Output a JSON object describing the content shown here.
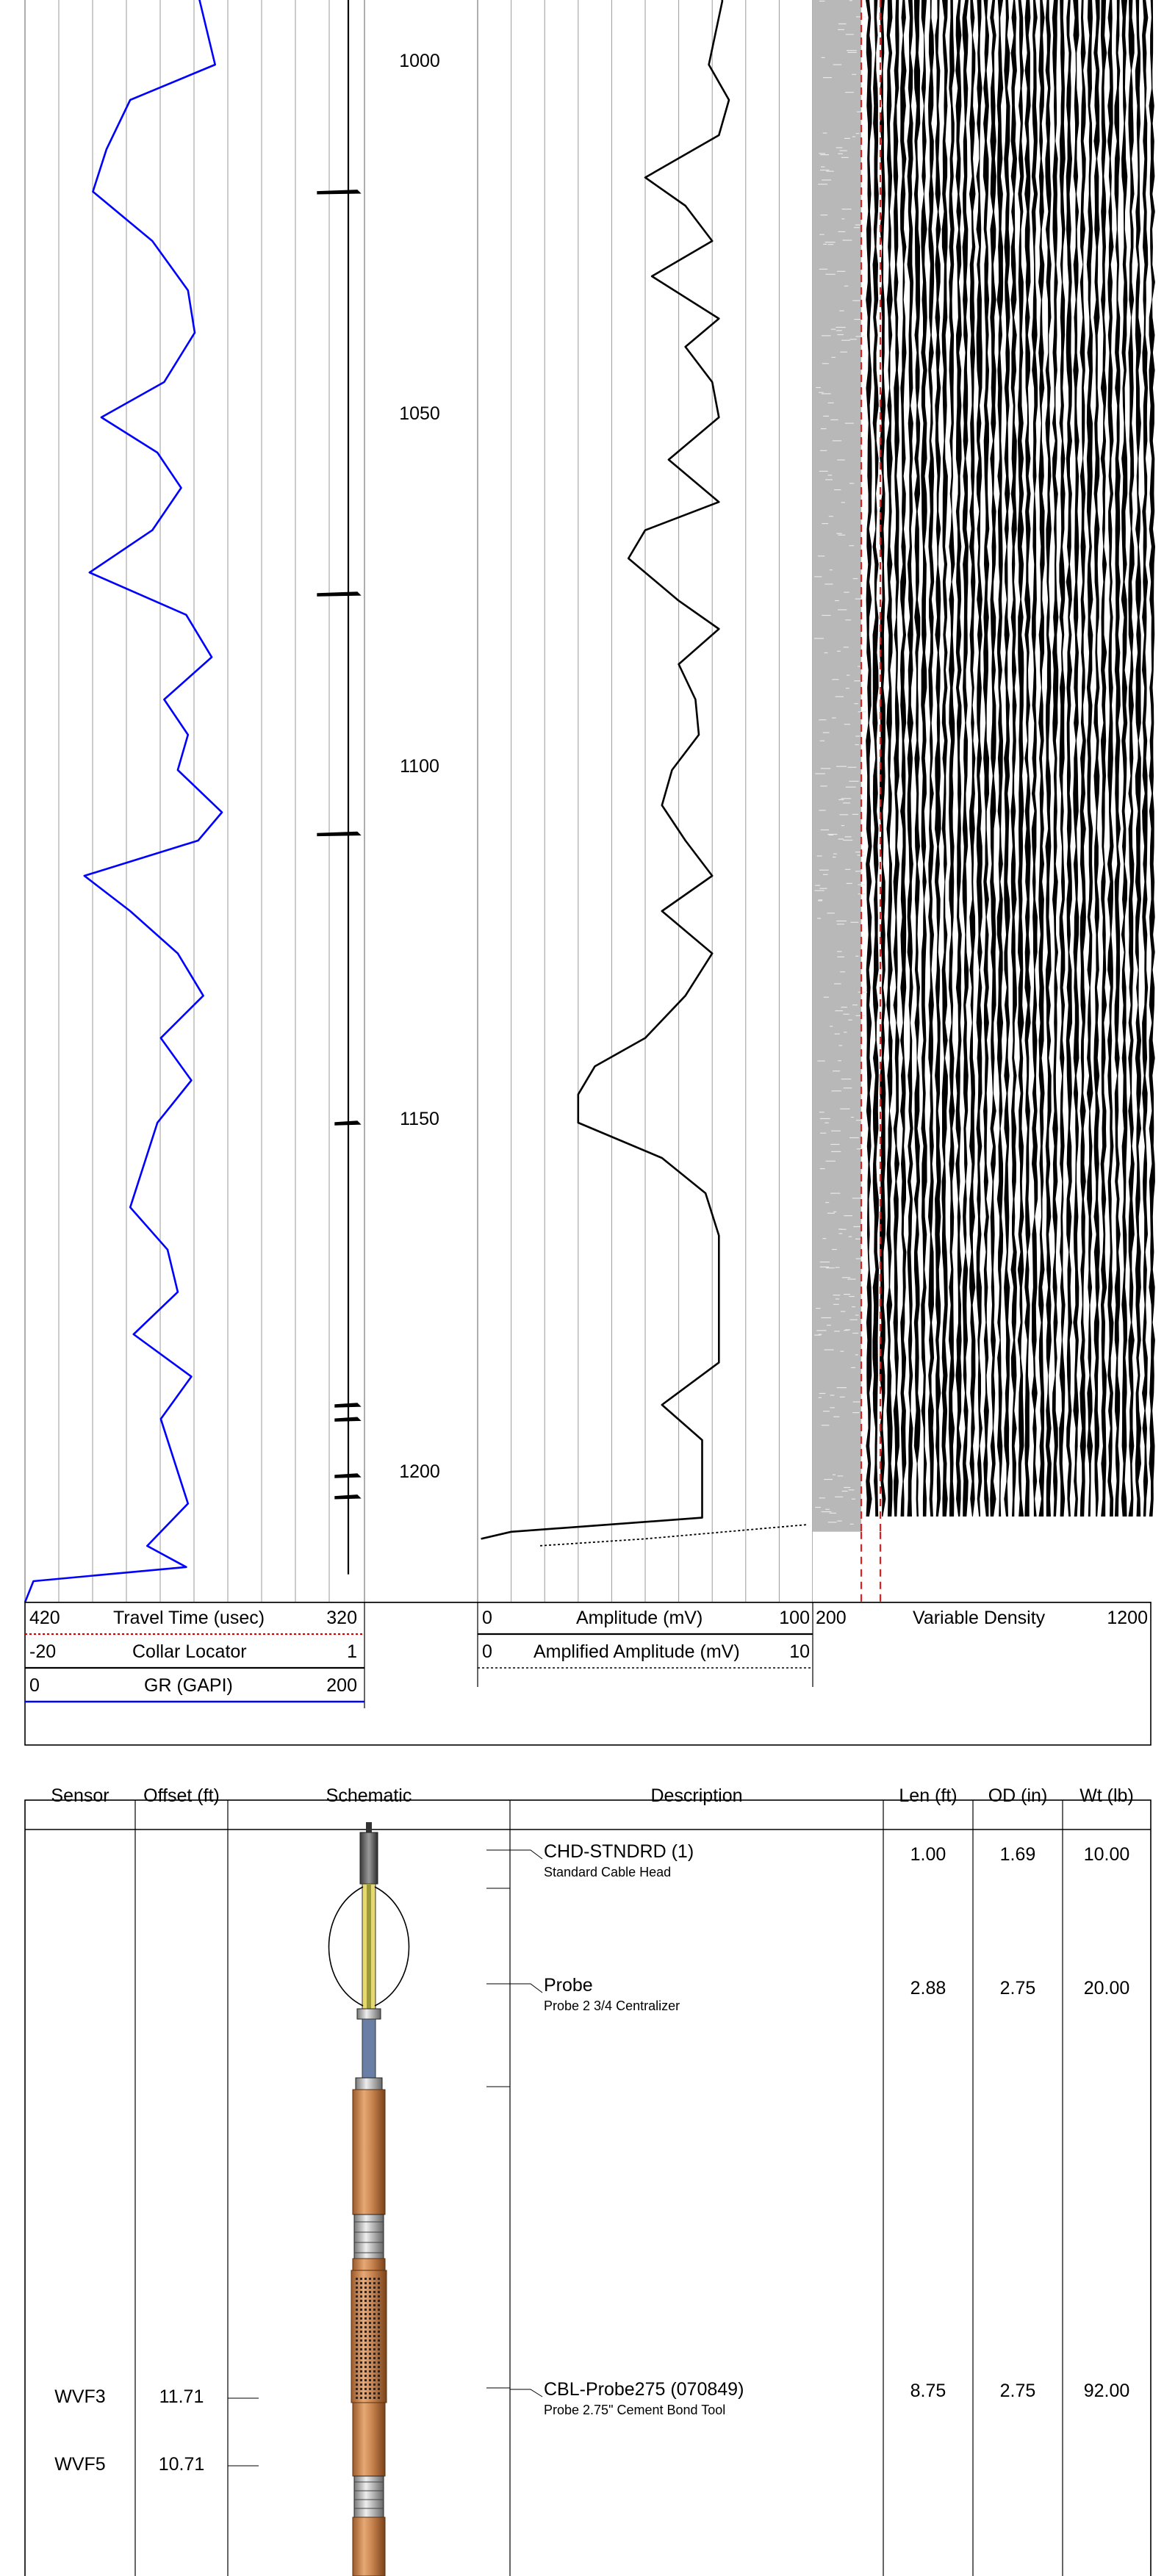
{
  "chart_data": [
    {
      "type": "line",
      "track": "left",
      "depth_axis": {
        "range": [
          983,
          1218
        ],
        "tick_labels": [
          1000,
          1050,
          1100,
          1150,
          1200
        ]
      },
      "grid": true,
      "series": [
        {
          "name": "GR (GAPI)",
          "color": "#0000ff",
          "scale": [
            0,
            200
          ],
          "depth": [
            983,
            1000,
            1005,
            1012,
            1018,
            1025,
            1032,
            1038,
            1045,
            1050,
            1055,
            1060,
            1066,
            1072,
            1078,
            1084,
            1090,
            1095,
            1100,
            1106,
            1110,
            1115,
            1120,
            1126,
            1132,
            1138,
            1144,
            1150,
            1156,
            1162,
            1168,
            1174,
            1180,
            1186,
            1192,
            1198,
            1204,
            1210,
            1213,
            1215,
            1218
          ],
          "values": [
            95,
            112,
            62,
            48,
            40,
            75,
            96,
            100,
            82,
            45,
            78,
            92,
            75,
            38,
            95,
            110,
            82,
            96,
            90,
            116,
            102,
            35,
            62,
            90,
            105,
            80,
            98,
            78,
            70,
            62,
            84,
            90,
            64,
            98,
            80,
            88,
            96,
            72,
            95,
            5,
            0
          ]
        },
        {
          "name": "Collar Locator",
          "color": "#000000",
          "scale": [
            -20,
            1
          ],
          "depth": [
            983,
            1218
          ],
          "values": [
            0,
            0
          ],
          "collar_depths": [
            1018,
            1075,
            1109,
            1150,
            1190,
            1192,
            1200,
            1203
          ]
        }
      ]
    },
    {
      "type": "line",
      "track": "amplitude",
      "series": [
        {
          "name": "Amplitude (mV)",
          "color": "#000000",
          "scale": [
            0,
            100
          ],
          "style": "solid",
          "depth": [
            983,
            991,
            1000,
            1005,
            1010,
            1016,
            1020,
            1025,
            1030,
            1036,
            1040,
            1045,
            1050,
            1056,
            1062,
            1066,
            1070,
            1076,
            1080,
            1085,
            1090,
            1095,
            1100,
            1105,
            1110,
            1115,
            1120,
            1126,
            1132,
            1138,
            1142,
            1146,
            1150,
            1155,
            1160,
            1166,
            1172,
            1178,
            1184,
            1190,
            1195,
            1200,
            1206,
            1208,
            1209
          ],
          "values": [
            72,
            73,
            69,
            75,
            72,
            50,
            62,
            70,
            52,
            72,
            62,
            70,
            72,
            57,
            72,
            50,
            45,
            60,
            72,
            60,
            65,
            66,
            58,
            55,
            62,
            70,
            55,
            70,
            62,
            50,
            35,
            30,
            30,
            55,
            68,
            72,
            72,
            72,
            72,
            55,
            67,
            67,
            67,
            10,
            1
          ]
        },
        {
          "name": "Amplified Amplitude (mV)",
          "color": "#000000",
          "scale": [
            0,
            10
          ],
          "style": "dotted",
          "depth": [
            1207,
            1209,
            1210
          ],
          "values": [
            9.8,
            5,
            1.8
          ]
        }
      ]
    },
    {
      "type": "heatmap",
      "track": "vdl",
      "name": "Variable Density",
      "scale": [
        200,
        1200
      ],
      "depth_range": [
        983,
        1208
      ]
    }
  ],
  "log_header": {
    "rows": [
      {
        "left": "420",
        "title": "Travel Time (usec)",
        "right": "320",
        "line_color": "#cc0000",
        "line_style": "dotted"
      },
      {
        "left": "-20",
        "title": "Collar Locator",
        "right": "1",
        "line_color": "#000000",
        "line_style": "solid"
      },
      {
        "left": "0",
        "title": "GR (GAPI)",
        "right": "200",
        "line_color": "#0000ff",
        "line_style": "solid"
      }
    ],
    "amp_rows": [
      {
        "left": "0",
        "title": "Amplitude (mV)",
        "right": "100",
        "line_style": "solid"
      },
      {
        "left": "0",
        "title": "Amplified Amplitude (mV)",
        "right": "10",
        "line_style": "dotted"
      }
    ],
    "vdl_row": {
      "left": "200",
      "title": "Variable Density",
      "right": "1200"
    }
  },
  "depth_labels": [
    "1000",
    "1050",
    "1100",
    "1150",
    "1200"
  ],
  "toolstring": {
    "columns": [
      "Sensor",
      "Offset (ft)",
      "Schematic",
      "Description",
      "Len (ft)",
      "OD (in)",
      "Wt (lb)"
    ],
    "components": [
      {
        "name": "CHD-STNDRD (1)",
        "sub": "Standard Cable Head",
        "len": "1.00",
        "od": "1.69",
        "wt": "10.00"
      },
      {
        "name": "Probe",
        "sub": "Probe 2 3/4 Centralizer",
        "len": "2.88",
        "od": "2.75",
        "wt": "20.00"
      },
      {
        "name": "CBL-Probe275 (070849)",
        "sub": "Probe 2.75\" Cement Bond Tool",
        "len": "8.75",
        "od": "2.75",
        "wt": "92.00"
      }
    ],
    "sensors": [
      {
        "name": "WVF3",
        "offset": "11.71"
      },
      {
        "name": "WVF5",
        "offset": "10.71"
      }
    ]
  }
}
